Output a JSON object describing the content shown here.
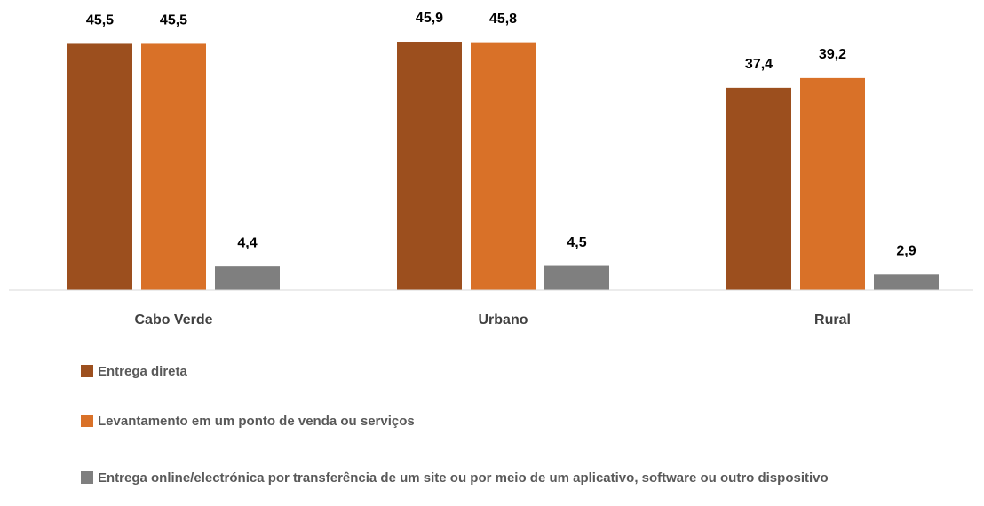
{
  "chart_data": {
    "type": "bar",
    "categories": [
      "Cabo Verde",
      "Urbano",
      "Rural"
    ],
    "series": [
      {
        "name": "Entrega direta",
        "color": "#9c4f1e",
        "values": [
          45.5,
          45.9,
          37.4
        ],
        "value_labels": [
          "45,5",
          "45,9",
          "37,4"
        ]
      },
      {
        "name": "Levantamento em um ponto de venda ou serviços",
        "color": "#d97128",
        "values": [
          45.5,
          45.8,
          39.2
        ],
        "value_labels": [
          "45,5",
          "45,8",
          "39,2"
        ]
      },
      {
        "name": "Entrega online/electrónica por transferência de um site ou por meio de um aplicativo, software ou outro dispositivo",
        "color": "#7f7f7f",
        "values": [
          4.4,
          4.5,
          2.9
        ],
        "value_labels": [
          "4,4",
          "4,5",
          "2,9"
        ]
      }
    ],
    "ylim": [
      0,
      50
    ]
  }
}
